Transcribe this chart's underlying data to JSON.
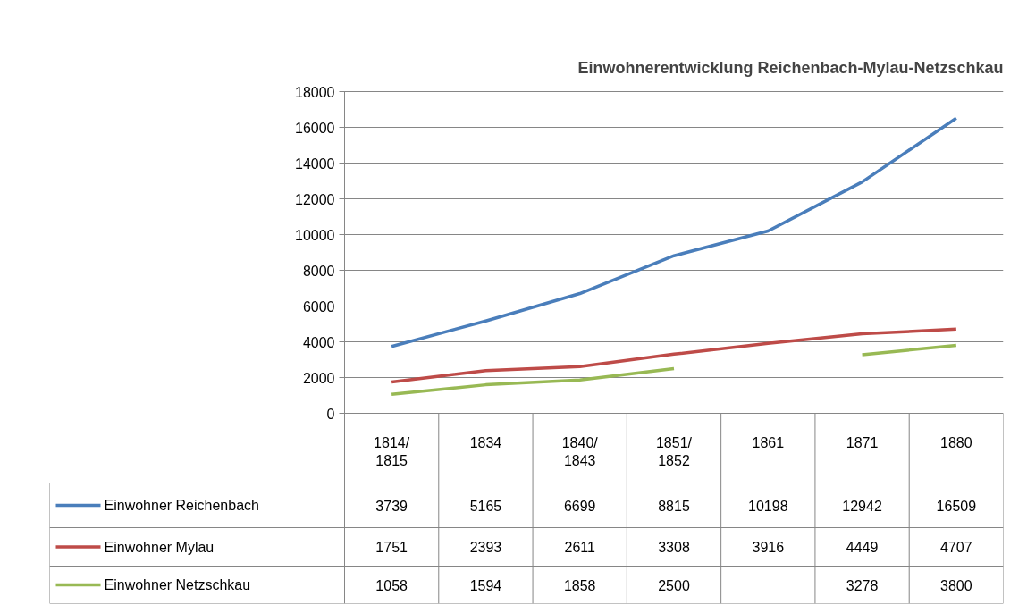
{
  "chart_data": {
    "type": "line",
    "title": "Einwohnerentwicklung Reichenbach-Mylau-Netzschkau",
    "categories": [
      "1814/\n1815",
      "1834",
      "1840/\n1843",
      "1851/\n1852",
      "1861",
      "1871",
      "1880"
    ],
    "series": [
      {
        "name": "Einwohner Reichenbach",
        "color": "#4a7ebb",
        "values": [
          3739,
          5165,
          6699,
          8815,
          10198,
          12942,
          16509
        ]
      },
      {
        "name": "Einwohner Mylau",
        "color": "#be4b48",
        "values": [
          1751,
          2393,
          2611,
          3308,
          3916,
          4449,
          4707
        ]
      },
      {
        "name": "Einwohner Netzschkau",
        "color": "#98b954",
        "values": [
          1058,
          1594,
          1858,
          2500,
          null,
          3278,
          3800
        ]
      }
    ],
    "ylim": [
      0,
      18000
    ],
    "yticks": [
      0,
      2000,
      4000,
      6000,
      8000,
      10000,
      12000,
      14000,
      16000,
      18000
    ],
    "grid": "y",
    "data_labels": true,
    "legend": "bottom",
    "marker": "none",
    "line_style": "solid"
  }
}
